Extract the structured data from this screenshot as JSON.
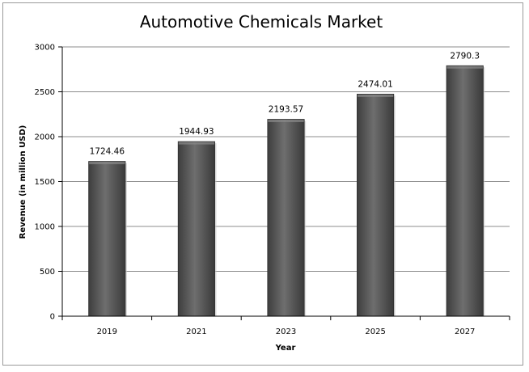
{
  "chart_data": {
    "type": "bar",
    "title": "Automotive Chemicals Market",
    "xlabel": "Year",
    "ylabel": "Revenue (in million USD)",
    "categories": [
      "2019",
      "2021",
      "2023",
      "2025",
      "2027"
    ],
    "values": [
      1724.46,
      1944.93,
      2193.57,
      2474.01,
      2790.3
    ],
    "data_labels": [
      "1724.46",
      "1944.93",
      "2193.57",
      "2474.01",
      "2790.3"
    ],
    "ylim": [
      0,
      3000
    ],
    "yticks": [
      "0",
      "500",
      "1000",
      "1500",
      "2000",
      "2500",
      "3000"
    ],
    "grid": true,
    "legend": "none",
    "bar_color": "#5a5a5a"
  }
}
